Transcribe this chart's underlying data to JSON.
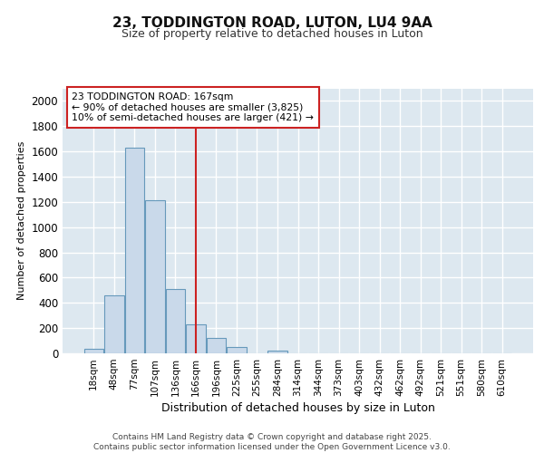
{
  "title_line1": "23, TODDINGTON ROAD, LUTON, LU4 9AA",
  "title_line2": "Size of property relative to detached houses in Luton",
  "xlabel": "Distribution of detached houses by size in Luton",
  "ylabel": "Number of detached properties",
  "categories": [
    "18sqm",
    "48sqm",
    "77sqm",
    "107sqm",
    "136sqm",
    "166sqm",
    "196sqm",
    "225sqm",
    "255sqm",
    "284sqm",
    "314sqm",
    "344sqm",
    "373sqm",
    "403sqm",
    "432sqm",
    "462sqm",
    "492sqm",
    "521sqm",
    "551sqm",
    "580sqm",
    "610sqm"
  ],
  "values": [
    35,
    460,
    1630,
    1210,
    510,
    230,
    120,
    50,
    0,
    25,
    0,
    0,
    0,
    0,
    0,
    0,
    0,
    0,
    0,
    0,
    0
  ],
  "bar_color": "#c9d9ea",
  "bar_edge_color": "#6699bb",
  "vline_x_index": 5,
  "vline_color": "#cc2222",
  "annotation_text": "23 TODDINGTON ROAD: 167sqm\n← 90% of detached houses are smaller (3,825)\n10% of semi-detached houses are larger (421) →",
  "annotation_box_color": "#ffffff",
  "annotation_border_color": "#cc2222",
  "ylim": [
    0,
    2100
  ],
  "yticks": [
    0,
    200,
    400,
    600,
    800,
    1000,
    1200,
    1400,
    1600,
    1800,
    2000
  ],
  "background_color": "#dde8f0",
  "grid_color": "#ffffff",
  "footer": "Contains HM Land Registry data © Crown copyright and database right 2025.\nContains public sector information licensed under the Open Government Licence v3.0."
}
